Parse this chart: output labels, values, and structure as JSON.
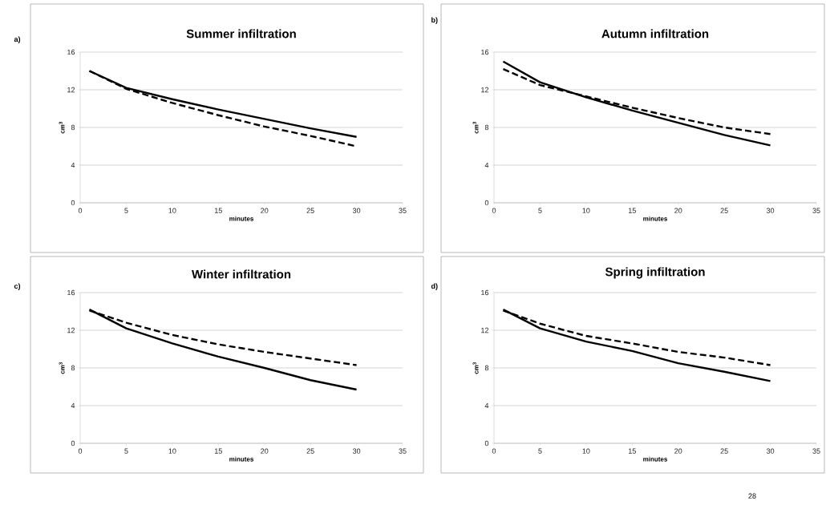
{
  "chart_data": [
    {
      "type": "line",
      "title": "Summer infiltration",
      "xlabel": "minutes",
      "ylabel": "cm$^{3}$",
      "annotations": [
        "a)"
      ],
      "x": [
        1,
        5,
        10,
        15,
        20,
        25,
        30
      ],
      "xlim": [
        0,
        35
      ],
      "ylim": [
        0,
        16
      ],
      "xticks": [
        0,
        5,
        10,
        15,
        20,
        25,
        30,
        35
      ],
      "yticks": [
        0,
        4,
        8,
        12,
        16
      ],
      "grid": "y",
      "marker": "none",
      "series": [
        {
          "color": "#000000",
          "line_style": "solid",
          "values": [
            14.0,
            12.2,
            11.0,
            9.9,
            8.9,
            7.9,
            7.0
          ]
        },
        {
          "color": "#000000",
          "line_style": "dashed",
          "values": [
            14.0,
            12.1,
            10.6,
            9.3,
            8.1,
            7.1,
            6.0
          ]
        }
      ]
    },
    {
      "type": "line",
      "title": "Autumn infiltration",
      "xlabel": "minutes",
      "ylabel": "cm$^{3}$",
      "annotations": [
        "b)"
      ],
      "x": [
        1,
        5,
        10,
        15,
        20,
        25,
        30
      ],
      "xlim": [
        0,
        35
      ],
      "ylim": [
        0,
        16
      ],
      "xticks": [
        0,
        5,
        10,
        15,
        20,
        25,
        30,
        35
      ],
      "yticks": [
        0,
        4,
        8,
        12,
        16
      ],
      "grid": "y",
      "marker": "none",
      "series": [
        {
          "color": "#000000",
          "line_style": "solid",
          "values": [
            15.0,
            12.8,
            11.2,
            9.8,
            8.5,
            7.2,
            6.1
          ]
        },
        {
          "color": "#000000",
          "line_style": "dashed",
          "values": [
            14.2,
            12.5,
            11.3,
            10.1,
            9.0,
            8.0,
            7.3
          ]
        }
      ]
    },
    {
      "type": "line",
      "title": "Winter infiltration",
      "xlabel": "minutes",
      "ylabel": "cm$^{3}$",
      "annotations": [
        "c)"
      ],
      "x": [
        1,
        5,
        10,
        15,
        20,
        25,
        30
      ],
      "xlim": [
        0,
        35
      ],
      "ylim": [
        0,
        16
      ],
      "xticks": [
        0,
        5,
        10,
        15,
        20,
        25,
        30,
        35
      ],
      "yticks": [
        0,
        4,
        8,
        12,
        16
      ],
      "grid": "y",
      "marker": "none",
      "series": [
        {
          "color": "#000000",
          "line_style": "solid",
          "values": [
            14.2,
            12.2,
            10.6,
            9.2,
            8.0,
            6.7,
            5.7
          ]
        },
        {
          "color": "#000000",
          "line_style": "dashed",
          "values": [
            14.1,
            12.8,
            11.5,
            10.5,
            9.7,
            9.0,
            8.3
          ]
        }
      ]
    },
    {
      "type": "line",
      "title": "Spring infiltration",
      "xlabel": "minutes",
      "ylabel": "cm$^{3}$",
      "annotations": [
        "d)",
        "28"
      ],
      "x": [
        1,
        5,
        10,
        15,
        20,
        25,
        30
      ],
      "xlim": [
        0,
        35
      ],
      "ylim": [
        0,
        16
      ],
      "xticks": [
        0,
        5,
        10,
        15,
        20,
        25,
        30,
        35
      ],
      "yticks": [
        0,
        4,
        8,
        12,
        16
      ],
      "grid": "y",
      "marker": "none",
      "series": [
        {
          "color": "#000000",
          "line_style": "solid",
          "values": [
            14.2,
            12.2,
            10.8,
            9.8,
            8.5,
            7.6,
            6.6
          ]
        },
        {
          "color": "#000000",
          "line_style": "dashed",
          "values": [
            14.1,
            12.7,
            11.4,
            10.6,
            9.7,
            9.1,
            8.3
          ]
        }
      ]
    }
  ]
}
